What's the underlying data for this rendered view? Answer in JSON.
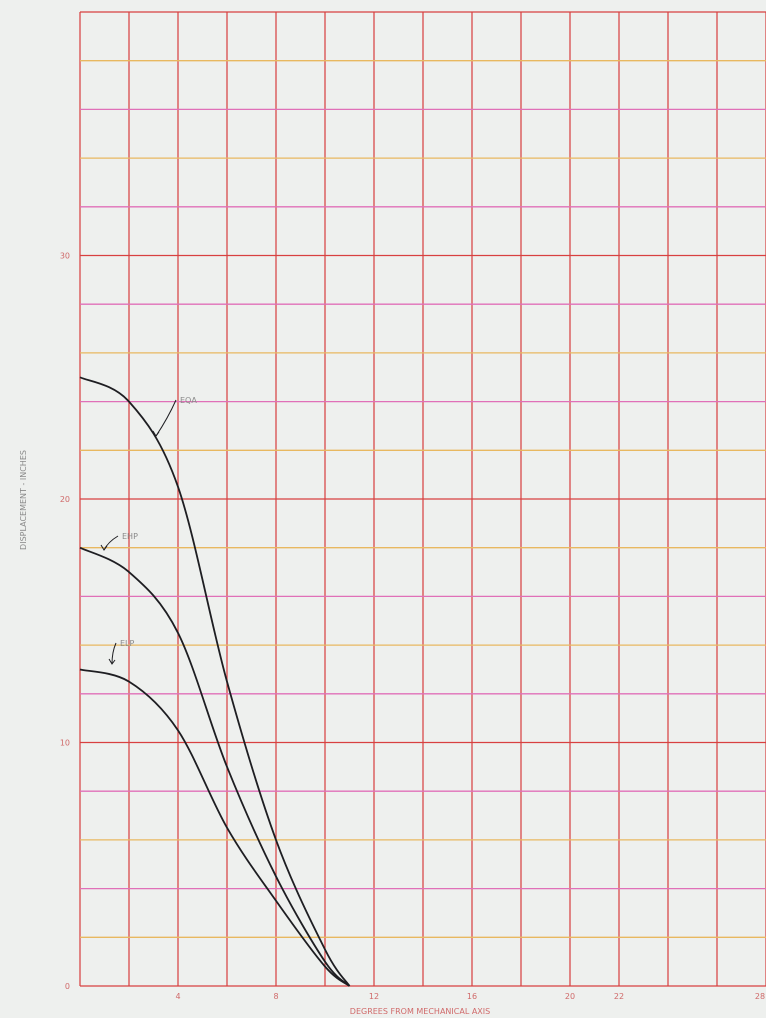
{
  "chart_data": {
    "type": "line",
    "title": "",
    "xlabel": "DEGREES FROM MECHANICAL AXIS",
    "ylabel": "DISPLACEMENT - INCHES",
    "xlim": [
      0,
      28
    ],
    "ylim": [
      0,
      40
    ],
    "x_ticks": [
      4,
      8,
      12,
      16,
      20,
      22,
      28
    ],
    "x_tick_labels": [
      "4",
      "8",
      "12",
      "16",
      "20",
      "22",
      "28"
    ],
    "y_ticks": [
      0,
      10,
      20,
      30
    ],
    "y_tick_labels": [
      "0",
      "10",
      "20",
      "30"
    ],
    "grid": true,
    "series": [
      {
        "name": "EQA",
        "x": [
          0,
          2,
          4,
          6,
          8,
          10,
          11
        ],
        "y": [
          25,
          24,
          20.5,
          12.5,
          6,
          1.5,
          0
        ]
      },
      {
        "name": "EHP",
        "x": [
          0,
          2,
          4,
          6,
          8,
          10,
          11
        ],
        "y": [
          18,
          17,
          14.5,
          9,
          4.5,
          1,
          0
        ]
      },
      {
        "name": "ELP",
        "x": [
          0,
          2,
          4,
          6,
          8,
          10,
          11
        ],
        "y": [
          13,
          12.5,
          10.5,
          6.5,
          3.5,
          0.8,
          0
        ]
      }
    ]
  }
}
